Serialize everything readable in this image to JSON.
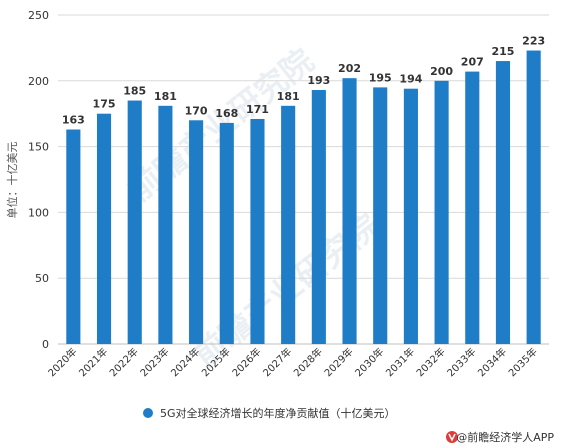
{
  "colors": {
    "bar": "#1f7dc8",
    "grid": "#d9d9d9",
    "axis": "#bfbfbf"
  },
  "watermark": "前瞻产业研究院",
  "source": "@前瞻经济学人APP",
  "icons": {
    "source": "qianzhan-logo-icon"
  },
  "chart_data": {
    "type": "bar",
    "categories": [
      "2020年",
      "2021年",
      "2022年",
      "2023年",
      "2024年",
      "2025年",
      "2026年",
      "2027年",
      "2028年",
      "2029年",
      "2030年",
      "2031年",
      "2032年",
      "2033年",
      "2034年",
      "2035年"
    ],
    "series": [
      {
        "name": "5G对全球经济增长的年度净贡献值（十亿美元）",
        "values": [
          163,
          175,
          185,
          181,
          170,
          168,
          171,
          181,
          193,
          202,
          195,
          194,
          200,
          207,
          215,
          223
        ]
      }
    ],
    "ylabel": "单位：十亿美元",
    "ylim": [
      0,
      250
    ],
    "yticks": [
      0,
      50,
      100,
      150,
      200,
      250
    ],
    "grid": true,
    "legend": "bottom"
  }
}
